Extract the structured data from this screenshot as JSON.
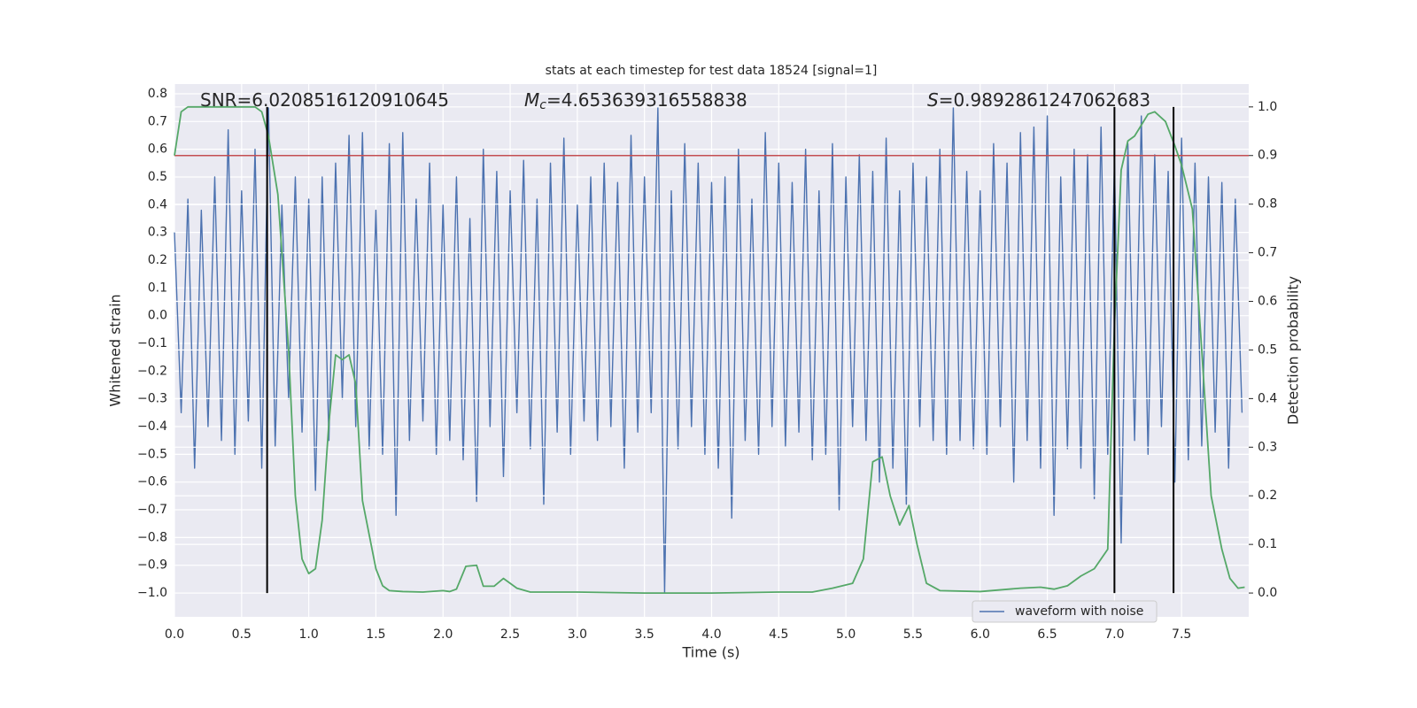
{
  "chart_data": {
    "type": "line",
    "title": "stats at each timestep for test data 18524 [signal=1]",
    "xlabel": "Time (s)",
    "ylabel": "Whitened strain",
    "y2label": "Detection probability",
    "background": "#eaeaf2",
    "grid": true,
    "legend": "lower right",
    "xlim": [
      0,
      8
    ],
    "xticks": [
      {
        "value": 0,
        "label": "0.0"
      },
      0.5,
      {
        "value": 1,
        "label": "1.0"
      },
      1.5,
      {
        "value": 2,
        "label": "2.0"
      },
      2.5,
      {
        "value": 3,
        "label": "3.0"
      },
      3.5,
      {
        "value": 4,
        "label": "4.0"
      },
      4.5,
      {
        "value": 5,
        "label": "5.0"
      },
      5.5,
      {
        "value": 6,
        "label": "6.0"
      },
      6.5,
      {
        "value": 7,
        "label": "7.0"
      },
      7.5
    ],
    "ylim": [
      -1.086,
      0.835
    ],
    "yticks": [
      {
        "value": -1,
        "label": "−1.0"
      },
      {
        "value": -0.9,
        "label": "−0.9"
      },
      {
        "value": -0.8,
        "label": "−0.8"
      },
      {
        "value": -0.7,
        "label": "−0.7"
      },
      {
        "value": -0.6,
        "label": "−0.6"
      },
      {
        "value": -0.5,
        "label": "−0.5"
      },
      {
        "value": -0.4,
        "label": "−0.4"
      },
      {
        "value": -0.3,
        "label": "−0.3"
      },
      {
        "value": -0.2,
        "label": "−0.2"
      },
      {
        "value": -0.1,
        "label": "−0.1"
      },
      {
        "value": 0,
        "label": "0.0"
      },
      0.1,
      0.2,
      0.3,
      0.4,
      0.5,
      0.6,
      0.7,
      0.8
    ],
    "y2lim": [
      -0.049,
      1.047
    ],
    "y2ticks": [
      {
        "value": 0,
        "label": "0.0"
      },
      0.1,
      0.2,
      0.3,
      0.4,
      0.5,
      0.6,
      0.7,
      0.8,
      0.9,
      {
        "value": 1,
        "label": "1.0"
      }
    ],
    "annotations": [
      {
        "text": "SNR=6.0208516120910645"
      },
      {
        "symbol": "M",
        "subscript": "c",
        "text": "=4.653639316558838"
      },
      {
        "symbol": "S",
        "text": "=0.9892861247062683"
      }
    ],
    "series": [
      {
        "name": "waveform with noise",
        "color": "#4c72b0",
        "x": [
          0,
          0.05,
          0.1,
          0.15,
          0.2,
          0.25,
          0.3,
          0.35,
          0.4,
          0.45,
          0.5,
          0.55,
          0.6,
          0.65,
          0.7,
          0.75,
          0.8,
          0.85,
          0.9,
          0.95,
          1,
          1.05,
          1.1,
          1.15,
          1.2,
          1.25,
          1.3,
          1.35,
          1.4,
          1.45,
          1.5,
          1.55,
          1.6,
          1.65,
          1.7,
          1.75,
          1.8,
          1.85,
          1.9,
          1.95,
          2,
          2.05,
          2.1,
          2.15,
          2.2,
          2.25,
          2.3,
          2.35,
          2.4,
          2.45,
          2.5,
          2.55,
          2.6,
          2.65,
          2.7,
          2.75,
          2.8,
          2.85,
          2.9,
          2.95,
          3,
          3.05,
          3.1,
          3.15,
          3.2,
          3.25,
          3.3,
          3.35,
          3.4,
          3.45,
          3.5,
          3.55,
          3.6,
          3.65,
          3.7,
          3.75,
          3.8,
          3.85,
          3.9,
          3.95,
          4,
          4.05,
          4.1,
          4.15,
          4.2,
          4.25,
          4.3,
          4.35,
          4.4,
          4.45,
          4.5,
          4.55,
          4.6,
          4.65,
          4.7,
          4.75,
          4.8,
          4.85,
          4.9,
          4.95,
          5,
          5.05,
          5.1,
          5.15,
          5.2,
          5.25,
          5.3,
          5.35,
          5.4,
          5.45,
          5.5,
          5.55,
          5.6,
          5.65,
          5.7,
          5.75,
          5.8,
          5.85,
          5.9,
          5.95,
          6,
          6.05,
          6.1,
          6.15,
          6.2,
          6.25,
          6.3,
          6.35,
          6.4,
          6.45,
          6.5,
          6.55,
          6.6,
          6.65,
          6.7,
          6.75,
          6.8,
          6.85,
          6.9,
          6.95,
          7,
          7.05,
          7.1,
          7.15,
          7.2,
          7.25,
          7.3,
          7.35,
          7.4,
          7.45,
          7.5,
          7.55,
          7.6,
          7.65,
          7.7,
          7.75,
          7.8,
          7.85,
          7.9,
          7.95
        ],
        "values": [
          0.3,
          -0.35,
          0.42,
          -0.55,
          0.38,
          -0.4,
          0.5,
          -0.45,
          0.67,
          -0.5,
          0.45,
          -0.38,
          0.6,
          -0.55,
          0.75,
          -0.47,
          0.4,
          -0.3,
          0.5,
          -0.42,
          0.42,
          -0.63,
          0.5,
          -0.45,
          0.55,
          -0.3,
          0.65,
          -0.4,
          0.66,
          -0.48,
          0.38,
          -0.5,
          0.62,
          -0.72,
          0.66,
          -0.45,
          0.42,
          -0.38,
          0.55,
          -0.5,
          0.4,
          -0.45,
          0.5,
          -0.52,
          0.35,
          -0.67,
          0.6,
          -0.4,
          0.52,
          -0.58,
          0.45,
          -0.35,
          0.56,
          -0.48,
          0.42,
          -0.68,
          0.55,
          -0.42,
          0.64,
          -0.5,
          0.4,
          -0.38,
          0.5,
          -0.45,
          0.55,
          -0.4,
          0.48,
          -0.55,
          0.65,
          -0.42,
          0.5,
          -0.35,
          0.75,
          -1.0,
          0.45,
          -0.48,
          0.62,
          -0.4,
          0.55,
          -0.5,
          0.48,
          -0.55,
          0.5,
          -0.73,
          0.6,
          -0.45,
          0.42,
          -0.5,
          0.66,
          -0.4,
          0.55,
          -0.47,
          0.48,
          -0.42,
          0.6,
          -0.52,
          0.45,
          -0.5,
          0.62,
          -0.7,
          0.5,
          -0.4,
          0.58,
          -0.45,
          0.52,
          -0.6,
          0.64,
          -0.55,
          0.45,
          -0.68,
          0.55,
          -0.4,
          0.5,
          -0.45,
          0.6,
          -0.5,
          0.75,
          -0.45,
          0.52,
          -0.48,
          0.45,
          -0.5,
          0.62,
          -0.4,
          0.55,
          -0.6,
          0.66,
          -0.45,
          0.68,
          -0.55,
          0.72,
          -0.72,
          0.5,
          -0.48,
          0.6,
          -0.55,
          0.58,
          -0.66,
          0.68,
          -0.5,
          0.55,
          -0.82,
          0.62,
          -0.45,
          0.72,
          -0.5,
          0.58,
          -0.4,
          0.52,
          -0.6,
          0.64,
          -0.52,
          0.55,
          -0.47,
          0.5,
          -0.42,
          0.48,
          -0.55,
          0.42,
          -0.35
        ]
      },
      {
        "color": "#55a868",
        "axis": "y2",
        "x": [
          0,
          0.05,
          0.1,
          0.2,
          0.3,
          0.4,
          0.5,
          0.6,
          0.65,
          0.7,
          0.77,
          0.85,
          0.9,
          0.95,
          1,
          1.05,
          1.1,
          1.15,
          1.2,
          1.25,
          1.3,
          1.35,
          1.4,
          1.5,
          1.55,
          1.6,
          1.7,
          1.85,
          2,
          2.05,
          2.1,
          2.17,
          2.25,
          2.3,
          2.38,
          2.45,
          2.55,
          2.65,
          3,
          3.5,
          4,
          4.5,
          4.75,
          4.9,
          5.05,
          5.13,
          5.2,
          5.27,
          5.33,
          5.4,
          5.47,
          5.53,
          5.6,
          5.7,
          6,
          6.3,
          6.45,
          6.55,
          6.65,
          6.75,
          6.85,
          6.95,
          7,
          7.05,
          7.1,
          7.15,
          7.25,
          7.3,
          7.38,
          7.45,
          7.5,
          7.58,
          7.65,
          7.72,
          7.8,
          7.86,
          7.92,
          7.97
        ],
        "values": [
          0.9,
          0.99,
          1,
          1,
          1,
          1,
          1,
          1,
          0.99,
          0.94,
          0.82,
          0.5,
          0.2,
          0.07,
          0.04,
          0.05,
          0.15,
          0.35,
          0.49,
          0.48,
          0.49,
          0.43,
          0.19,
          0.05,
          0.015,
          0.005,
          0.003,
          0.002,
          0.005,
          0.003,
          0.008,
          0.055,
          0.057,
          0.014,
          0.014,
          0.03,
          0.01,
          0.002,
          0.002,
          0,
          0,
          0.002,
          0.002,
          0.01,
          0.02,
          0.07,
          0.27,
          0.28,
          0.2,
          0.14,
          0.18,
          0.1,
          0.02,
          0.005,
          0.003,
          0.01,
          0.012,
          0.008,
          0.015,
          0.035,
          0.05,
          0.09,
          0.55,
          0.87,
          0.93,
          0.94,
          0.985,
          0.99,
          0.97,
          0.92,
          0.88,
          0.79,
          0.5,
          0.2,
          0.09,
          0.03,
          0.01,
          0.012
        ]
      }
    ],
    "hline": {
      "y": 0.9,
      "axis": "y2",
      "color": "#c44e52"
    },
    "vlines": {
      "x": [
        0.69,
        7.0,
        7.44
      ],
      "ymin": 0,
      "ymax": 1,
      "axis": "y2",
      "color": "#000000"
    }
  }
}
